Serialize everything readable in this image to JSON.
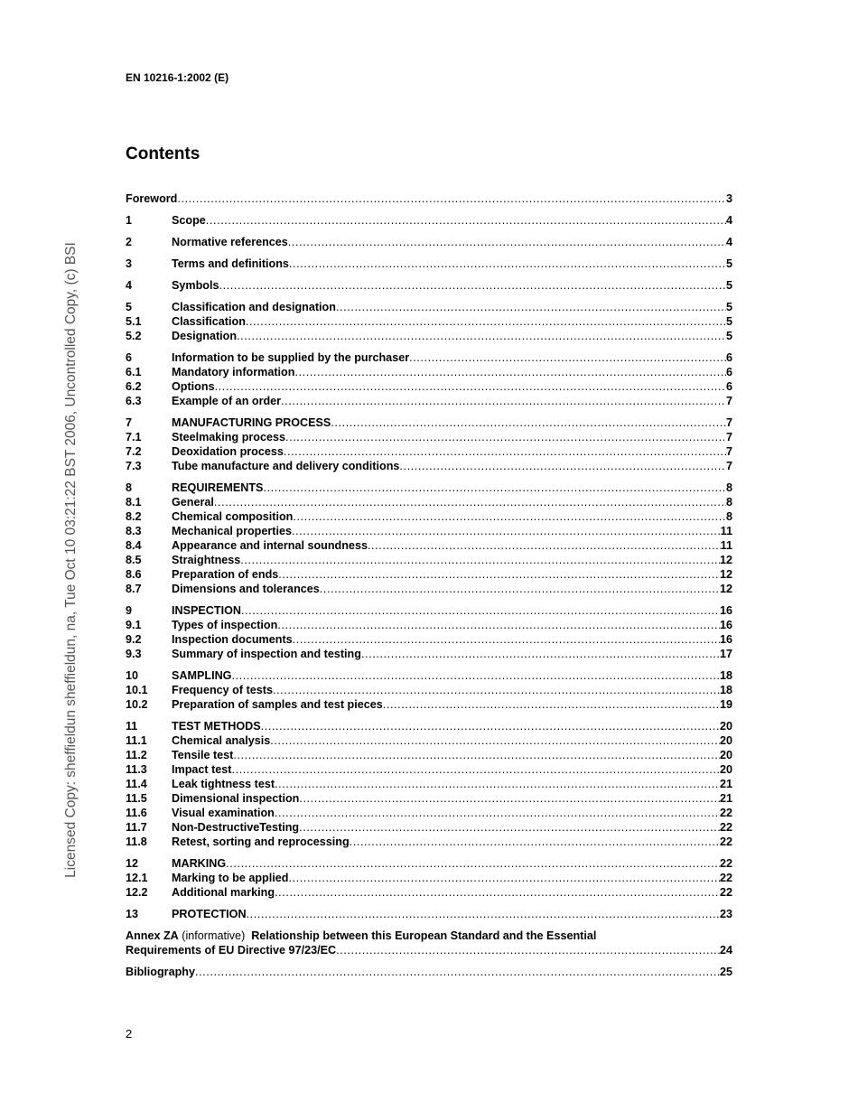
{
  "header": "EN 10216-1:2002 (E)",
  "title": "Contents",
  "watermark": "Licensed Copy: sheffieldun sheffieldun, na, Tue Oct 10 03:21:22 BST 2006, Uncontrolled Copy, (c) BSI",
  "page_number": "2",
  "groups": [
    [
      {
        "num": "",
        "text": "Foreword",
        "page": "3"
      }
    ],
    [
      {
        "num": "1",
        "text": "Scope",
        "page": "4"
      }
    ],
    [
      {
        "num": "2",
        "text": "Normative references",
        "page": "4"
      }
    ],
    [
      {
        "num": "3",
        "text": "Terms and definitions",
        "page": "5"
      }
    ],
    [
      {
        "num": "4",
        "text": "Symbols",
        "page": "5"
      }
    ],
    [
      {
        "num": "5",
        "text": "Classification and designation",
        "page": "5"
      },
      {
        "num": "5.1",
        "text": "Classification",
        "page": "5"
      },
      {
        "num": "5.2",
        "text": "Designation",
        "page": "5"
      }
    ],
    [
      {
        "num": "6",
        "text": "Information to be supplied by the purchaser",
        "page": "6"
      },
      {
        "num": "6.1",
        "text": "Mandatory information",
        "page": "6"
      },
      {
        "num": "6.2",
        "text": "Options",
        "page": "6"
      },
      {
        "num": "6.3",
        "text": "Example of an order",
        "page": "7"
      }
    ],
    [
      {
        "num": "7",
        "text": "MANUFACTURING PROCESS",
        "page": "7"
      },
      {
        "num": "7.1",
        "text": "Steelmaking process",
        "page": "7"
      },
      {
        "num": "7.2",
        "text": "Deoxidation process",
        "page": "7"
      },
      {
        "num": "7.3",
        "text": "Tube manufacture and delivery conditions",
        "page": "7"
      }
    ],
    [
      {
        "num": "8",
        "text": "REQUIREMENTS",
        "page": "8"
      },
      {
        "num": "8.1",
        "text": "General",
        "page": "8"
      },
      {
        "num": "8.2",
        "text": "Chemical composition",
        "page": "8"
      },
      {
        "num": "8.3",
        "text": "Mechanical properties",
        "page": "11"
      },
      {
        "num": "8.4",
        "text": "Appearance and internal soundness",
        "page": "11"
      },
      {
        "num": "8.5",
        "text": "Straightness",
        "page": "12"
      },
      {
        "num": "8.6",
        "text": "Preparation of ends",
        "page": "12"
      },
      {
        "num": "8.7",
        "text": "Dimensions and tolerances",
        "page": "12"
      }
    ],
    [
      {
        "num": "9",
        "text": "INSPECTION",
        "page": "16"
      },
      {
        "num": "9.1",
        "text": "Types of inspection",
        "page": "16"
      },
      {
        "num": "9.2",
        "text": "Inspection documents",
        "page": "16"
      },
      {
        "num": "9.3",
        "text": "Summary of  inspection and testing",
        "page": "17"
      }
    ],
    [
      {
        "num": "10",
        "text": "SAMPLING",
        "page": "18"
      },
      {
        "num": "10.1",
        "text": "Frequency of tests",
        "page": "18"
      },
      {
        "num": "10.2",
        "text": "Preparation of samples and test pieces",
        "page": "19"
      }
    ],
    [
      {
        "num": "11",
        "text": "TEST METHODS",
        "page": "20"
      },
      {
        "num": "11.1",
        "text": "Chemical analysis",
        "page": "20"
      },
      {
        "num": "11.2",
        "text": "Tensile test",
        "page": "20"
      },
      {
        "num": "11.3",
        "text": "Impact test",
        "page": "20"
      },
      {
        "num": "11.4",
        "text": "Leak tightness test",
        "page": "21"
      },
      {
        "num": "11.5",
        "text": "Dimensional inspection",
        "page": "21"
      },
      {
        "num": "11.6",
        "text": "Visual examination",
        "page": "22"
      },
      {
        "num": "11.7",
        "text": "Non-DestructiveTesting",
        "page": "22"
      },
      {
        "num": "11.8",
        "text": "Retest, sorting and reprocessing",
        "page": "22"
      }
    ],
    [
      {
        "num": "12",
        "text": "MARKING",
        "page": "22"
      },
      {
        "num": "12.1",
        "text": "Marking to be applied",
        "page": "22"
      },
      {
        "num": "12.2",
        "text": "Additional marking",
        "page": "22"
      }
    ],
    [
      {
        "num": "13",
        "text": "PROTECTION",
        "page": "23"
      }
    ]
  ],
  "annex": {
    "label": "Annex ZA",
    "qualifier": "(informative)",
    "line1": "Relationship between this European Standard and the Essential",
    "line2": "Requirements of EU Directive 97/23/EC",
    "page": "24"
  },
  "bibliography": {
    "text": "Bibliography",
    "page": "25"
  }
}
